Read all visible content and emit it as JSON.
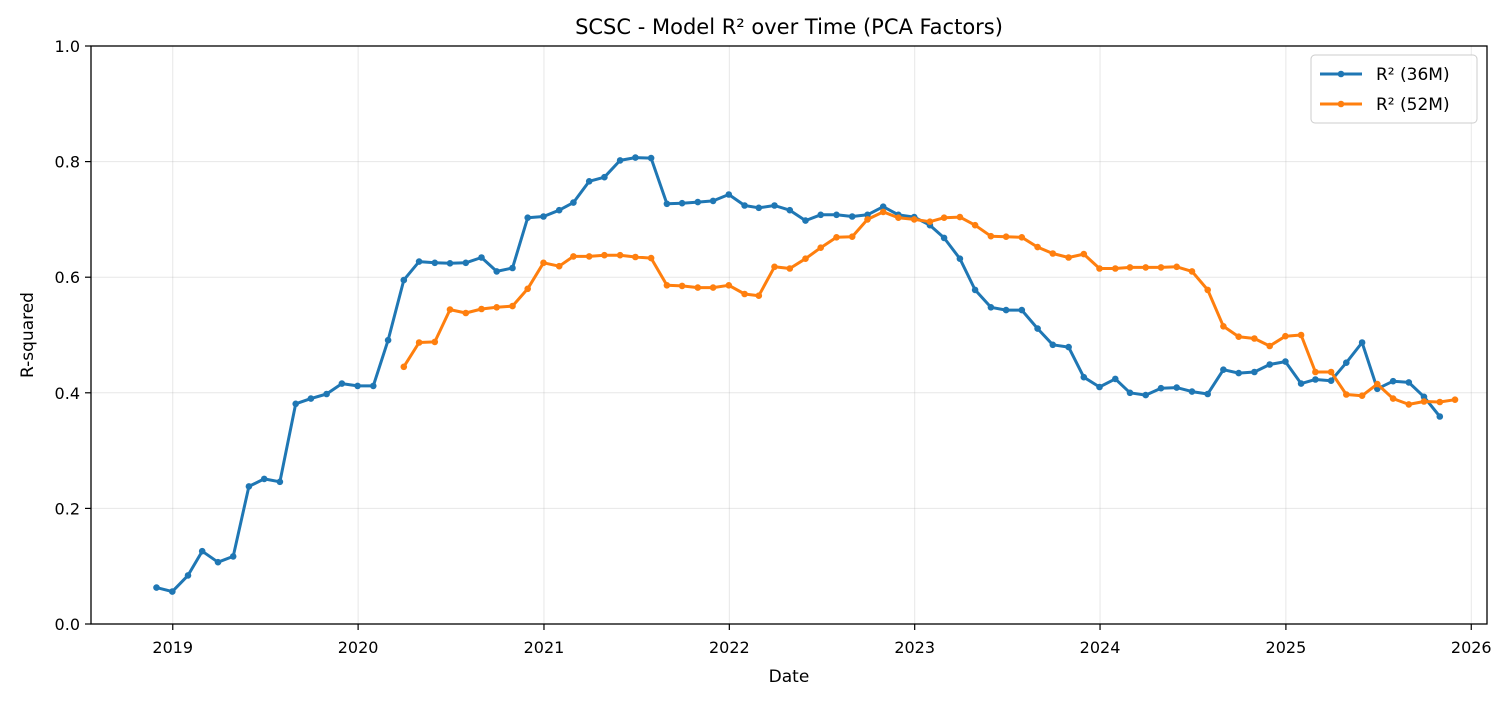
{
  "chart_data": {
    "type": "line",
    "title": "SCSC - Model R² over Time (PCA Factors)",
    "xlabel": "Date",
    "ylabel": "R-squared",
    "ylim": [
      0,
      1.0
    ],
    "yticks": [
      0.0,
      0.2,
      0.4,
      0.6,
      0.8,
      1.0
    ],
    "ytick_labels": [
      "0.0",
      "0.2",
      "0.4",
      "0.6",
      "0.8",
      "1.0"
    ],
    "xlim": [
      "2018-07-24",
      "2026-02-01"
    ],
    "xticks": [
      "2019-01-01",
      "2020-01-01",
      "2021-01-01",
      "2022-01-01",
      "2023-01-01",
      "2024-01-01",
      "2025-01-01",
      "2026-01-01"
    ],
    "xtick_labels": [
      "2019",
      "2020",
      "2021",
      "2022",
      "2023",
      "2024",
      "2025",
      "2026"
    ],
    "grid": true,
    "legend_position": "top-right",
    "series": [
      {
        "name": "R² (36M)",
        "color": "#1f77b4",
        "points": [
          [
            "2018-11-30",
            0.063
          ],
          [
            "2018-12-31",
            0.056
          ],
          [
            "2019-01-31",
            0.084
          ],
          [
            "2019-02-28",
            0.126
          ],
          [
            "2019-03-31",
            0.107
          ],
          [
            "2019-04-30",
            0.117
          ],
          [
            "2019-05-31",
            0.238
          ],
          [
            "2019-06-30",
            0.251
          ],
          [
            "2019-07-31",
            0.246
          ],
          [
            "2019-08-31",
            0.381
          ],
          [
            "2019-09-30",
            0.39
          ],
          [
            "2019-10-31",
            0.398
          ],
          [
            "2019-11-30",
            0.416
          ],
          [
            "2019-12-31",
            0.412
          ],
          [
            "2020-01-31",
            0.412
          ],
          [
            "2020-02-29",
            0.491
          ],
          [
            "2020-03-31",
            0.595
          ],
          [
            "2020-04-30",
            0.627
          ],
          [
            "2020-05-31",
            0.625
          ],
          [
            "2020-06-30",
            0.624
          ],
          [
            "2020-07-31",
            0.625
          ],
          [
            "2020-08-31",
            0.634
          ],
          [
            "2020-09-30",
            0.61
          ],
          [
            "2020-10-31",
            0.616
          ],
          [
            "2020-11-30",
            0.703
          ],
          [
            "2020-12-31",
            0.705
          ],
          [
            "2021-01-31",
            0.716
          ],
          [
            "2021-02-28",
            0.729
          ],
          [
            "2021-03-31",
            0.766
          ],
          [
            "2021-04-30",
            0.773
          ],
          [
            "2021-05-31",
            0.802
          ],
          [
            "2021-06-30",
            0.807
          ],
          [
            "2021-07-31",
            0.806
          ],
          [
            "2021-08-31",
            0.727
          ],
          [
            "2021-09-30",
            0.728
          ],
          [
            "2021-10-31",
            0.73
          ],
          [
            "2021-11-30",
            0.732
          ],
          [
            "2021-12-31",
            0.743
          ],
          [
            "2022-01-31",
            0.724
          ],
          [
            "2022-02-28",
            0.72
          ],
          [
            "2022-03-31",
            0.724
          ],
          [
            "2022-04-30",
            0.716
          ],
          [
            "2022-05-31",
            0.698
          ],
          [
            "2022-06-30",
            0.708
          ],
          [
            "2022-07-31",
            0.708
          ],
          [
            "2022-08-31",
            0.705
          ],
          [
            "2022-09-30",
            0.708
          ],
          [
            "2022-10-31",
            0.722
          ],
          [
            "2022-11-30",
            0.708
          ],
          [
            "2022-12-31",
            0.704
          ],
          [
            "2023-01-31",
            0.69
          ],
          [
            "2023-02-28",
            0.668
          ],
          [
            "2023-03-31",
            0.632
          ],
          [
            "2023-04-30",
            0.578
          ],
          [
            "2023-05-31",
            0.548
          ],
          [
            "2023-06-30",
            0.543
          ],
          [
            "2023-07-31",
            0.543
          ],
          [
            "2023-08-31",
            0.511
          ],
          [
            "2023-09-30",
            0.483
          ],
          [
            "2023-10-31",
            0.479
          ],
          [
            "2023-11-30",
            0.427
          ],
          [
            "2023-12-31",
            0.41
          ],
          [
            "2024-01-31",
            0.424
          ],
          [
            "2024-02-29",
            0.4
          ],
          [
            "2024-03-31",
            0.396
          ],
          [
            "2024-04-30",
            0.408
          ],
          [
            "2024-05-31",
            0.409
          ],
          [
            "2024-06-30",
            0.402
          ],
          [
            "2024-07-31",
            0.398
          ],
          [
            "2024-08-31",
            0.44
          ],
          [
            "2024-09-30",
            0.434
          ],
          [
            "2024-10-31",
            0.436
          ],
          [
            "2024-11-30",
            0.449
          ],
          [
            "2024-12-31",
            0.454
          ],
          [
            "2025-01-31",
            0.416
          ],
          [
            "2025-02-28",
            0.423
          ],
          [
            "2025-03-31",
            0.421
          ],
          [
            "2025-04-30",
            0.452
          ],
          [
            "2025-05-31",
            0.487
          ],
          [
            "2025-06-30",
            0.407
          ],
          [
            "2025-07-31",
            0.42
          ],
          [
            "2025-08-31",
            0.418
          ],
          [
            "2025-09-30",
            0.393
          ],
          [
            "2025-10-31",
            0.359
          ]
        ]
      },
      {
        "name": "R² (52M)",
        "color": "#ff7f0e",
        "points": [
          [
            "2020-03-31",
            0.445
          ],
          [
            "2020-04-30",
            0.487
          ],
          [
            "2020-05-31",
            0.488
          ],
          [
            "2020-06-30",
            0.544
          ],
          [
            "2020-07-31",
            0.538
          ],
          [
            "2020-08-31",
            0.545
          ],
          [
            "2020-09-30",
            0.548
          ],
          [
            "2020-10-31",
            0.55
          ],
          [
            "2020-11-30",
            0.58
          ],
          [
            "2020-12-31",
            0.625
          ],
          [
            "2021-01-31",
            0.619
          ],
          [
            "2021-02-28",
            0.636
          ],
          [
            "2021-03-31",
            0.636
          ],
          [
            "2021-04-30",
            0.638
          ],
          [
            "2021-05-31",
            0.638
          ],
          [
            "2021-06-30",
            0.635
          ],
          [
            "2021-07-31",
            0.633
          ],
          [
            "2021-08-31",
            0.586
          ],
          [
            "2021-09-30",
            0.585
          ],
          [
            "2021-10-31",
            0.582
          ],
          [
            "2021-11-30",
            0.582
          ],
          [
            "2021-12-31",
            0.586
          ],
          [
            "2022-01-31",
            0.571
          ],
          [
            "2022-02-28",
            0.568
          ],
          [
            "2022-03-31",
            0.618
          ],
          [
            "2022-04-30",
            0.615
          ],
          [
            "2022-05-31",
            0.632
          ],
          [
            "2022-06-30",
            0.651
          ],
          [
            "2022-07-31",
            0.669
          ],
          [
            "2022-08-31",
            0.67
          ],
          [
            "2022-09-30",
            0.7
          ],
          [
            "2022-10-31",
            0.713
          ],
          [
            "2022-11-30",
            0.703
          ],
          [
            "2022-12-31",
            0.7
          ],
          [
            "2023-01-31",
            0.696
          ],
          [
            "2023-02-28",
            0.703
          ],
          [
            "2023-03-31",
            0.704
          ],
          [
            "2023-04-30",
            0.69
          ],
          [
            "2023-05-31",
            0.671
          ],
          [
            "2023-06-30",
            0.67
          ],
          [
            "2023-07-31",
            0.669
          ],
          [
            "2023-08-31",
            0.652
          ],
          [
            "2023-09-30",
            0.641
          ],
          [
            "2023-10-31",
            0.634
          ],
          [
            "2023-11-30",
            0.64
          ],
          [
            "2023-12-31",
            0.615
          ],
          [
            "2024-01-31",
            0.615
          ],
          [
            "2024-02-29",
            0.617
          ],
          [
            "2024-03-31",
            0.617
          ],
          [
            "2024-04-30",
            0.617
          ],
          [
            "2024-05-31",
            0.618
          ],
          [
            "2024-06-30",
            0.61
          ],
          [
            "2024-07-31",
            0.578
          ],
          [
            "2024-08-31",
            0.515
          ],
          [
            "2024-09-30",
            0.497
          ],
          [
            "2024-10-31",
            0.494
          ],
          [
            "2024-11-30",
            0.481
          ],
          [
            "2024-12-31",
            0.498
          ],
          [
            "2025-01-31",
            0.5
          ],
          [
            "2025-02-28",
            0.436
          ],
          [
            "2025-03-31",
            0.436
          ],
          [
            "2025-04-30",
            0.397
          ],
          [
            "2025-05-31",
            0.395
          ],
          [
            "2025-06-30",
            0.415
          ],
          [
            "2025-07-31",
            0.39
          ],
          [
            "2025-08-31",
            0.38
          ],
          [
            "2025-09-30",
            0.385
          ],
          [
            "2025-10-31",
            0.384
          ],
          [
            "2025-11-30",
            0.388
          ]
        ]
      }
    ]
  }
}
